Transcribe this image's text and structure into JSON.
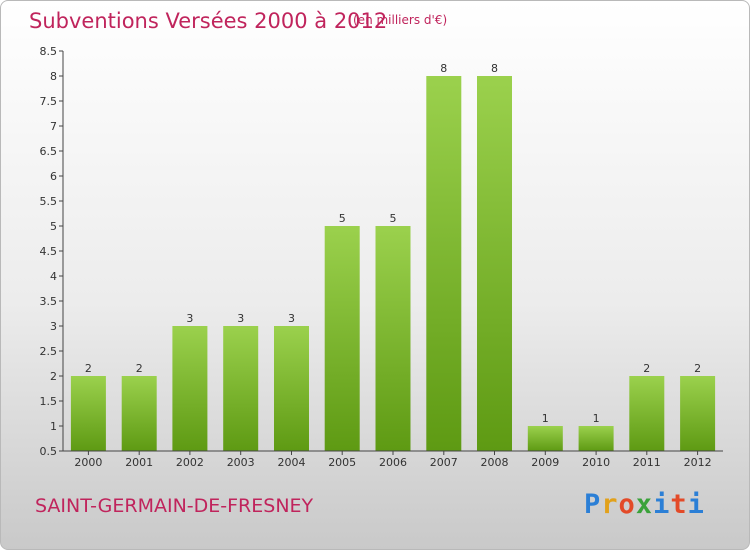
{
  "header": {
    "title": "Subventions Versées 2000 à 2012",
    "subtitle": "(en milliers d'€)"
  },
  "footer": {
    "commune": "SAINT-GERMAIN-DE-FRESNEY",
    "brand": [
      "P",
      "r",
      "o",
      "x",
      "i",
      "t",
      "i"
    ]
  },
  "colors": {
    "title": "#c0245c",
    "bar_top": "#9bd14d",
    "bar_bottom": "#5e9a13",
    "axis": "#444444"
  },
  "chart_data": {
    "type": "bar",
    "title": "Subventions Versées 2000 à 2012",
    "categories": [
      "2000",
      "2001",
      "2002",
      "2003",
      "2004",
      "2005",
      "2006",
      "2007",
      "2008",
      "2009",
      "2010",
      "2011",
      "2012"
    ],
    "values": [
      2,
      2,
      3,
      3,
      3,
      5,
      5,
      8,
      8,
      1,
      1,
      2,
      2
    ],
    "data_labels": [
      "2",
      "2",
      "3",
      "3",
      "3",
      "5",
      "5",
      "8",
      "8",
      "1",
      "1",
      "2",
      "2"
    ],
    "ylim": [
      0.5,
      8.5
    ],
    "yticks": [
      "0.5",
      "1",
      "1.5",
      "2",
      "2.5",
      "3",
      "3.5",
      "4",
      "4.5",
      "5",
      "5.5",
      "6",
      "6.5",
      "7",
      "7.5",
      "8",
      "8.5"
    ],
    "ytick_values": [
      0.5,
      1,
      1.5,
      2,
      2.5,
      3,
      3.5,
      4,
      4.5,
      5,
      5.5,
      6,
      6.5,
      7,
      7.5,
      8,
      8.5
    ],
    "grid": false,
    "legend": "none"
  }
}
